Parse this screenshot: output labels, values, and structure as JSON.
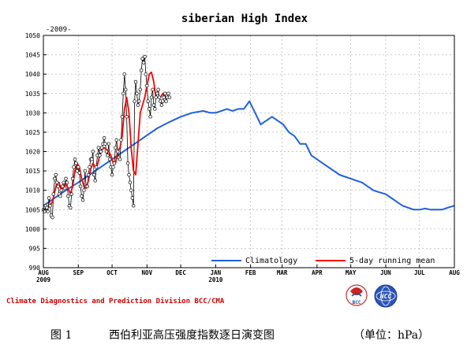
{
  "chart_data": {
    "type": "line",
    "title": "siberian High Index",
    "subtitle": "-2009-",
    "ylim": [
      990,
      1050
    ],
    "yticks": [
      990,
      995,
      1000,
      1005,
      1010,
      1015,
      1020,
      1025,
      1030,
      1035,
      1040,
      1045,
      1050
    ],
    "xlim": [
      "2009-08-01",
      "2010-08-01"
    ],
    "xticks": [
      {
        "date": "2009-08-01",
        "label": "AUG",
        "year": "2009"
      },
      {
        "date": "2009-09-01",
        "label": "SEP",
        "year": ""
      },
      {
        "date": "2009-10-01",
        "label": "OCT",
        "year": ""
      },
      {
        "date": "2009-11-01",
        "label": "NOV",
        "year": ""
      },
      {
        "date": "2009-12-01",
        "label": "DEC",
        "year": ""
      },
      {
        "date": "2010-01-01",
        "label": "JAN",
        "year": "2010"
      },
      {
        "date": "2010-02-01",
        "label": "FEB",
        "year": ""
      },
      {
        "date": "2010-03-01",
        "label": "MAR",
        "year": ""
      },
      {
        "date": "2010-04-01",
        "label": "APR",
        "year": ""
      },
      {
        "date": "2010-05-01",
        "label": "MAY",
        "year": ""
      },
      {
        "date": "2010-06-01",
        "label": "JUN",
        "year": ""
      },
      {
        "date": "2010-07-01",
        "label": "JUL",
        "year": ""
      },
      {
        "date": "2010-08-01",
        "label": "AUG",
        "year": ""
      }
    ],
    "grid": true,
    "legend_position": "bottom-right",
    "series": [
      {
        "name": "",
        "color": "#000000",
        "marker": "open-circle",
        "x": [
          "2009-08-01",
          "2009-08-02",
          "2009-08-03",
          "2009-08-04",
          "2009-08-05",
          "2009-08-06",
          "2009-08-07",
          "2009-08-08",
          "2009-08-09",
          "2009-08-10",
          "2009-08-11",
          "2009-08-12",
          "2009-08-13",
          "2009-08-14",
          "2009-08-15",
          "2009-08-16",
          "2009-08-17",
          "2009-08-18",
          "2009-08-19",
          "2009-08-20",
          "2009-08-21",
          "2009-08-22",
          "2009-08-23",
          "2009-08-24",
          "2009-08-25",
          "2009-08-26",
          "2009-08-27",
          "2009-08-28",
          "2009-08-29",
          "2009-08-30",
          "2009-08-31",
          "2009-09-01",
          "2009-09-02",
          "2009-09-03",
          "2009-09-04",
          "2009-09-05",
          "2009-09-06",
          "2009-09-07",
          "2009-09-08",
          "2009-09-09",
          "2009-09-10",
          "2009-09-11",
          "2009-09-12",
          "2009-09-13",
          "2009-09-14",
          "2009-09-15",
          "2009-09-16",
          "2009-09-17",
          "2009-09-18",
          "2009-09-19",
          "2009-09-20",
          "2009-09-21",
          "2009-09-22",
          "2009-09-23",
          "2009-09-24",
          "2009-09-25",
          "2009-09-26",
          "2009-09-27",
          "2009-09-28",
          "2009-09-29",
          "2009-09-30",
          "2009-10-01",
          "2009-10-02",
          "2009-10-03",
          "2009-10-04",
          "2009-10-05",
          "2009-10-06",
          "2009-10-07",
          "2009-10-08",
          "2009-10-09",
          "2009-10-10",
          "2009-10-11",
          "2009-10-12",
          "2009-10-13",
          "2009-10-14",
          "2009-10-15",
          "2009-10-16",
          "2009-10-17",
          "2009-10-18",
          "2009-10-19",
          "2009-10-20",
          "2009-10-21",
          "2009-10-22",
          "2009-10-23",
          "2009-10-24",
          "2009-10-25",
          "2009-10-26",
          "2009-10-27",
          "2009-10-28",
          "2009-10-29",
          "2009-10-30",
          "2009-10-31",
          "2009-11-01",
          "2009-11-02",
          "2009-11-03",
          "2009-11-04",
          "2009-11-05",
          "2009-11-06",
          "2009-11-07",
          "2009-11-08",
          "2009-11-09",
          "2009-11-10",
          "2009-11-11",
          "2009-11-12",
          "2009-11-13",
          "2009-11-14",
          "2009-11-15",
          "2009-11-16",
          "2009-11-17",
          "2009-11-18",
          "2009-11-19",
          "2009-11-20",
          "2009-11-21"
        ],
        "values": [
          1005,
          1004.5,
          1006,
          1005.5,
          1004.5,
          1008,
          1006,
          1003.5,
          1003,
          1009,
          1013,
          1014,
          1012,
          1011,
          1009,
          1008.5,
          1010,
          1011,
          1012,
          1010.5,
          1013,
          1012,
          1008.5,
          1006,
          1005.5,
          1009,
          1013,
          1016,
          1018,
          1017,
          1015,
          1016,
          1014.5,
          1011,
          1008.5,
          1007.5,
          1010,
          1015,
          1011,
          1011,
          1014,
          1016,
          1018,
          1018,
          1020,
          1014,
          1012.5,
          1016,
          1019,
          1021,
          1019,
          1020,
          1021,
          1022,
          1023.5,
          1022,
          1020,
          1019,
          1022,
          1018,
          1016,
          1014,
          1016,
          1017,
          1021,
          1023,
          1020,
          1018.5,
          1018,
          1023,
          1029,
          1035,
          1040,
          1036,
          1029,
          1017,
          1014,
          1012,
          1010,
          1008,
          1006,
          1033,
          1038,
          1035,
          1032,
          1033,
          1036,
          1041,
          1044,
          1043,
          1044.5,
          1040,
          1037,
          1033,
          1031,
          1029,
          1034,
          1036,
          1032,
          1031,
          1034,
          1035,
          1036,
          1034,
          1033,
          1032,
          1033,
          1034,
          1035,
          1033,
          1034,
          1035,
          1034
        ]
      },
      {
        "name": "5-day running mean",
        "color": "#ff0000",
        "x": [
          "2009-08-03",
          "2009-08-05",
          "2009-08-07",
          "2009-08-09",
          "2009-08-11",
          "2009-08-13",
          "2009-08-15",
          "2009-08-17",
          "2009-08-19",
          "2009-08-21",
          "2009-08-23",
          "2009-08-25",
          "2009-08-27",
          "2009-08-29",
          "2009-08-31",
          "2009-09-02",
          "2009-09-04",
          "2009-09-06",
          "2009-09-08",
          "2009-09-10",
          "2009-09-12",
          "2009-09-14",
          "2009-09-16",
          "2009-09-18",
          "2009-09-20",
          "2009-09-22",
          "2009-09-24",
          "2009-09-26",
          "2009-09-28",
          "2009-09-30",
          "2009-10-02",
          "2009-10-04",
          "2009-10-06",
          "2009-10-08",
          "2009-10-10",
          "2009-10-12",
          "2009-10-14",
          "2009-10-16",
          "2009-10-18",
          "2009-10-20",
          "2009-10-22",
          "2009-10-24",
          "2009-10-26",
          "2009-10-28",
          "2009-10-30",
          "2009-11-01",
          "2009-11-03",
          "2009-11-05",
          "2009-11-07",
          "2009-11-09",
          "2009-11-11",
          "2009-11-13",
          "2009-11-15",
          "2009-11-17",
          "2009-11-19"
        ],
        "values": [
          1005,
          1005.5,
          1006,
          1007,
          1009.5,
          1012,
          1012,
          1010,
          1011,
          1011.5,
          1010.5,
          1009,
          1011,
          1015,
          1017,
          1016,
          1013,
          1011,
          1010.5,
          1012.5,
          1015.5,
          1017,
          1016,
          1016.5,
          1019,
          1020.5,
          1021,
          1020.5,
          1020,
          1019,
          1017,
          1017,
          1020,
          1021,
          1024,
          1031,
          1034,
          1030,
          1021,
          1015,
          1014,
          1022,
          1030,
          1032,
          1034,
          1037,
          1040,
          1040.5,
          1038,
          1034,
          1034,
          1034,
          1035,
          1034,
          1034
        ]
      },
      {
        "name": "Climatology",
        "color": "#1f5fe0",
        "x": [
          "2009-08-01",
          "2009-08-11",
          "2009-08-21",
          "2009-09-01",
          "2009-09-11",
          "2009-09-21",
          "2009-10-01",
          "2009-10-11",
          "2009-10-21",
          "2009-10-31",
          "2009-11-10",
          "2009-11-20",
          "2009-12-01",
          "2009-12-11",
          "2009-12-21",
          "2009-12-27",
          "2010-01-01",
          "2010-01-06",
          "2010-01-11",
          "2010-01-16",
          "2010-01-21",
          "2010-01-26",
          "2010-01-31",
          "2010-02-05",
          "2010-02-10",
          "2010-02-15",
          "2010-02-20",
          "2010-02-25",
          "2010-03-02",
          "2010-03-07",
          "2010-03-12",
          "2010-03-17",
          "2010-03-22",
          "2010-03-27",
          "2010-04-01",
          "2010-04-06",
          "2010-04-11",
          "2010-04-16",
          "2010-04-21",
          "2010-04-26",
          "2010-05-01",
          "2010-05-06",
          "2010-05-11",
          "2010-05-16",
          "2010-05-21",
          "2010-05-26",
          "2010-06-01",
          "2010-06-06",
          "2010-06-11",
          "2010-06-16",
          "2010-06-21",
          "2010-06-26",
          "2010-07-01",
          "2010-07-06",
          "2010-07-11",
          "2010-07-16",
          "2010-07-21",
          "2010-07-26",
          "2010-08-01"
        ],
        "values": [
          1006,
          1008,
          1010,
          1012,
          1014,
          1016,
          1018,
          1020,
          1022,
          1024,
          1026,
          1027.5,
          1029,
          1030,
          1030.5,
          1030,
          1030,
          1030.5,
          1031,
          1030.5,
          1031,
          1031,
          1033,
          1030,
          1027,
          1028,
          1029,
          1028,
          1027,
          1025,
          1024,
          1022,
          1022,
          1019,
          1018,
          1017,
          1016,
          1015,
          1014,
          1013.5,
          1013,
          1012.5,
          1012,
          1011,
          1010,
          1009.5,
          1009,
          1008,
          1007,
          1006,
          1005.5,
          1005,
          1005,
          1005.3,
          1005,
          1005,
          1005,
          1005.5,
          1006
        ]
      }
    ],
    "legend": {
      "climatology_label": "Climatology",
      "running_mean_label": "5-day running mean"
    }
  },
  "footer": {
    "division_text": "Climate Diagnostics and Prediction Division  BCC/CMA",
    "bcc_logo_text": "BCC",
    "ncc_logo_text": "NCC"
  },
  "caption": {
    "figure_label": "图 1",
    "caption_text": "西伯利亚高压强度指数逐日演变图",
    "unit_text": "（单位：hPa）"
  },
  "colors": {
    "climatology": "#1f5fe0",
    "running_mean": "#ff0000",
    "daily": "#000000",
    "footer_text": "#cc0000",
    "grid": "#b0b0b0"
  }
}
